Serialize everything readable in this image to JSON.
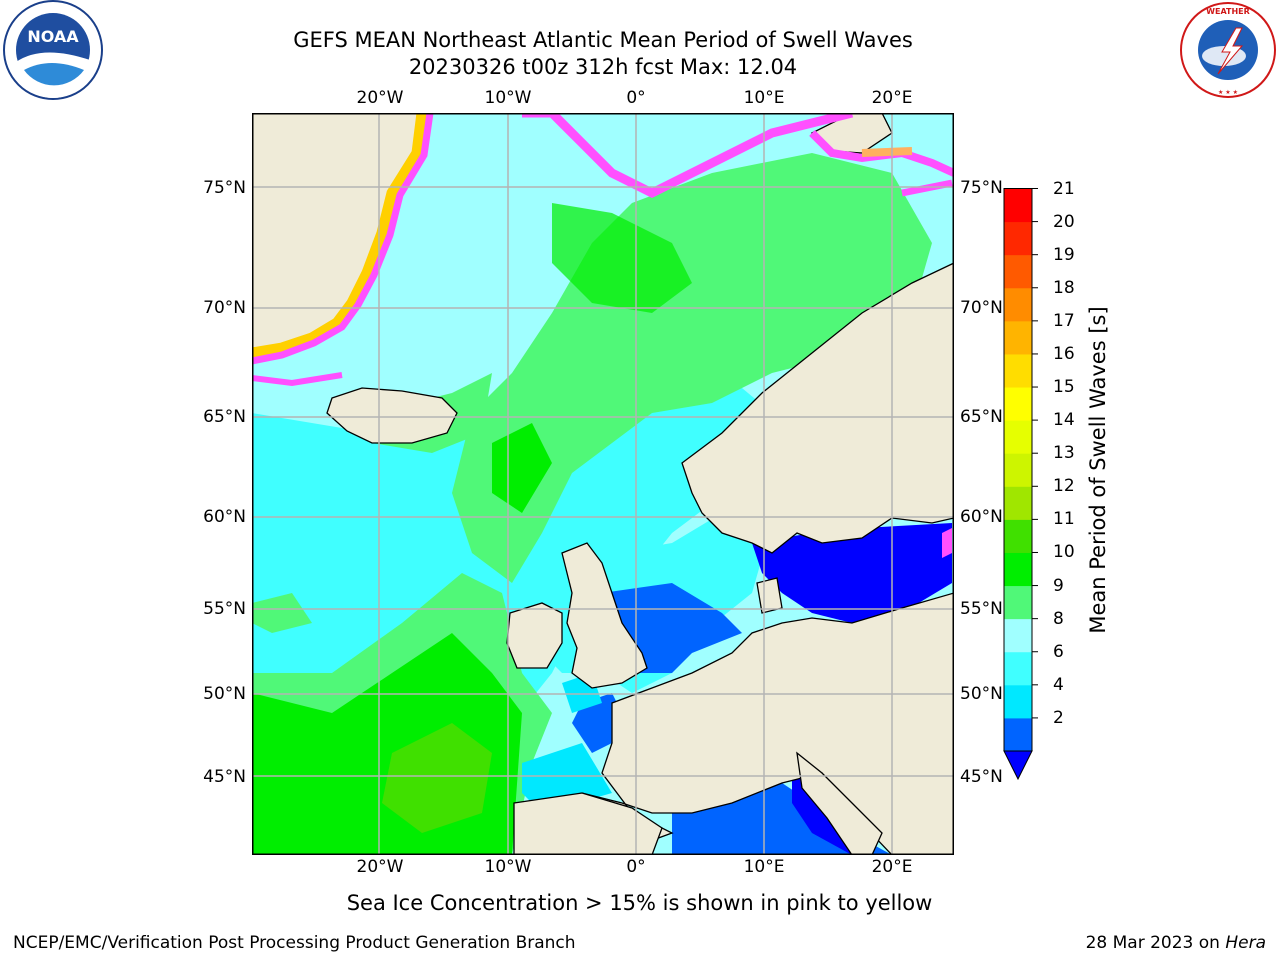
{
  "title_line1": "GEFS MEAN Northeast Atlantic Mean Period of Swell Waves",
  "title_line2": "20230326 t00z 312h fcst   Max: 12.04",
  "map": {
    "longitude_labels": [
      "20°W",
      "10°W",
      "0°",
      "10°E",
      "20°E"
    ],
    "latitude_labels": [
      "75°N",
      "70°N",
      "65°N",
      "60°N",
      "55°N",
      "50°N",
      "45°N"
    ],
    "land_color": "#efebd8",
    "ice_color": "#ff50ff"
  },
  "colorbar": {
    "label": "Mean Period of Swell Waves [s]",
    "ticks": [
      "21",
      "20",
      "19",
      "18",
      "17",
      "16",
      "15",
      "14",
      "13",
      "12",
      "11",
      "10",
      "9",
      "8",
      "6",
      "4",
      "2"
    ],
    "colors_bottom_to_top": [
      "#0064ff",
      "#00e8ff",
      "#40ffff",
      "#a0ffff",
      "#50f878",
      "#00ee00",
      "#40e000",
      "#a0e600",
      "#cdf500",
      "#e6ff00",
      "#ffff00",
      "#ffdd00",
      "#ffb400",
      "#ff8c00",
      "#ff5a00",
      "#ff2800",
      "#ff0000"
    ],
    "under_color": "#0000ff"
  },
  "footnote": "Sea Ice Concentration > 15% is shown in pink to yellow",
  "credit": "NCEP/EMC/Verification Post Processing Product Generation Branch",
  "date_prefix": "28 Mar 2023 on ",
  "date_machine": "Hera",
  "logos": {
    "left": "NOAA",
    "right": "NATIONAL WEATHER SERVICE"
  }
}
